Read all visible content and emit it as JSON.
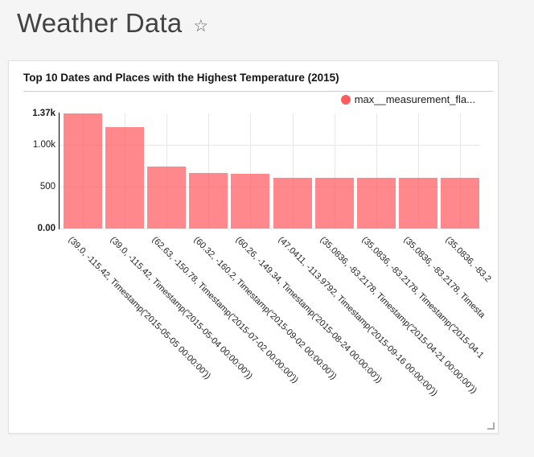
{
  "page": {
    "title": "Weather Data",
    "favorite_icon": "☆"
  },
  "card": {
    "title": "Top 10 Dates and Places with the Highest Temperature (2015)",
    "legend_label": "max__measurement_fla..."
  },
  "colors": {
    "series": "#ff5a5f",
    "bar_fill": "rgba(255,90,95,0.72)",
    "page_background": "#f5f5f5"
  },
  "chart_data": {
    "type": "bar",
    "title": "Top 10 Dates and Places with the Highest Temperature (2015)",
    "series": [
      {
        "name": "max__measurement_fla...",
        "values": [
          1370,
          1207,
          738,
          660,
          648,
          605,
          604,
          603,
          602,
          601
        ]
      }
    ],
    "categories": [
      "(39.0, -115.42, Timestamp('2015-05-05 00:00:00'))",
      "(39.0, -115.42, Timestamp('2015-05-04 00:00:00'))",
      "(62.63, -150.78, Timestamp('2015-07-02 00:00:00'))",
      "(60.32, -160.2, Timestamp('2015-09-02 00:00:00'))",
      "(60.26, -149.34, Timestamp('2015-08-24 00:00:00'))",
      "(47.0411, -113.9792, Timestamp('2015-09-16 00:00:00'))",
      "(35.0836, -83.2178, Timestamp('2015-04-21 00:00:00'))",
      "(35.0836, -83.2178, Timestamp('2015-04-1",
      "(35.0836, -83.2178, Timesta",
      "(35.0836, -83.2"
    ],
    "xlabel": "",
    "ylabel": "",
    "ylim": [
      0,
      1370
    ],
    "y_ticks": [
      {
        "label": "1.37k",
        "value": 1370,
        "bold": true
      },
      {
        "label": "1.00k",
        "value": 1000,
        "bold": false
      },
      {
        "label": "500",
        "value": 500,
        "bold": false
      },
      {
        "label": "0.00",
        "value": 0,
        "bold": true
      }
    ],
    "grid": true,
    "legend_position": "top-right",
    "x_label_rotation": 45
  }
}
